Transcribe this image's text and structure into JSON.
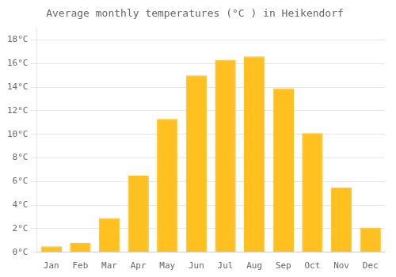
{
  "chart_data": {
    "type": "bar",
    "title": "Average monthly temperatures (°C ) in Heikendorf",
    "categories": [
      "Jan",
      "Feb",
      "Mar",
      "Apr",
      "May",
      "Jun",
      "Jul",
      "Aug",
      "Sep",
      "Oct",
      "Nov",
      "Dec"
    ],
    "values": [
      0.5,
      0.8,
      2.9,
      6.5,
      11.3,
      15.0,
      16.3,
      16.6,
      13.9,
      10.1,
      5.5,
      2.1
    ],
    "color": "#FFC020",
    "ylim": [
      0,
      19
    ],
    "yticks": [
      {
        "value": 0,
        "label": "0°C"
      },
      {
        "value": 2,
        "label": "2°C"
      },
      {
        "value": 4,
        "label": "4°C"
      },
      {
        "value": 6,
        "label": "6°C"
      },
      {
        "value": 8,
        "label": "8°C"
      },
      {
        "value": 10,
        "label": "10°C"
      },
      {
        "value": 12,
        "label": "12°C"
      },
      {
        "value": 14,
        "label": "14°C"
      },
      {
        "value": 16,
        "label": "16°C"
      },
      {
        "value": 18,
        "label": "18°C"
      }
    ],
    "grid": true
  }
}
